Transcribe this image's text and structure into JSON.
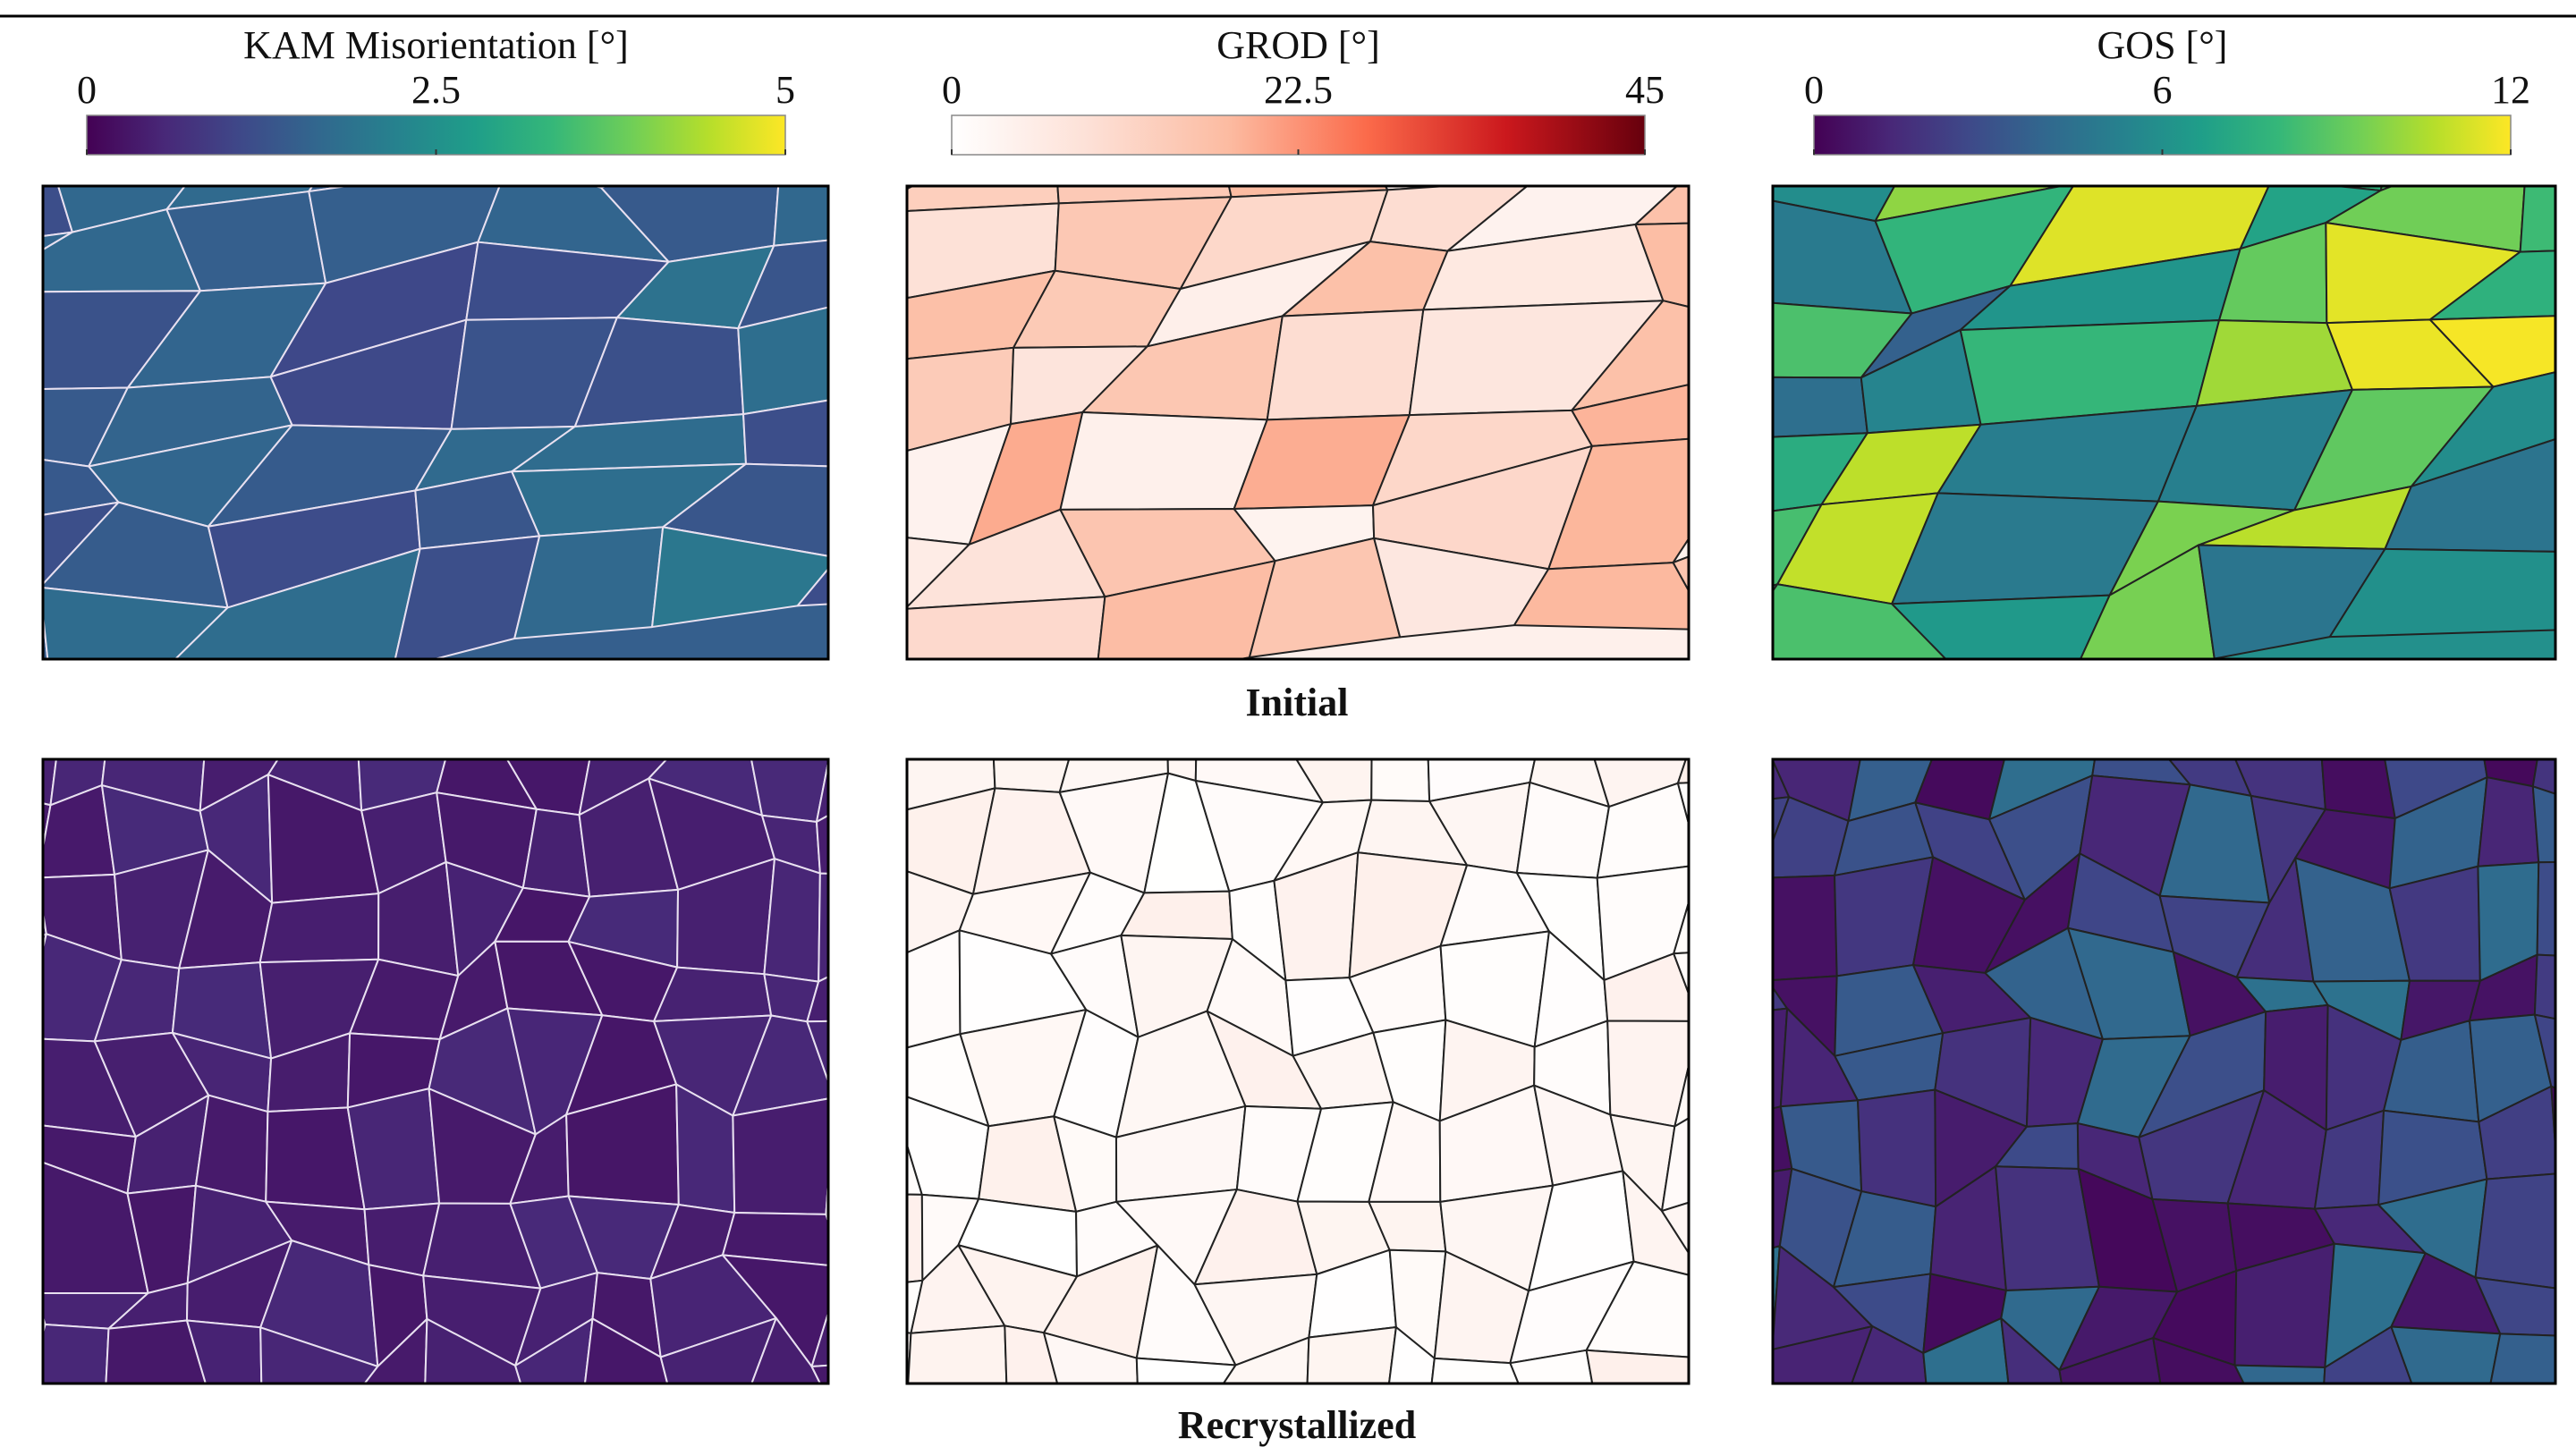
{
  "colorbars": [
    {
      "title": "KAM Misorientation [°]",
      "colormap": "viridis",
      "lim": [
        0,
        5
      ],
      "ticks": [
        0,
        2.5,
        5
      ]
    },
    {
      "title": "GROD [°]",
      "colormap": "reds",
      "lim": [
        0,
        45
      ],
      "ticks": [
        0,
        22.5,
        45
      ]
    },
    {
      "title": "GOS [°]",
      "colormap": "viridis",
      "lim": [
        0,
        12
      ],
      "ticks": [
        0,
        6,
        12
      ]
    }
  ],
  "rows": [
    {
      "label": "Initial"
    },
    {
      "label": "Recrystallized"
    }
  ]
}
